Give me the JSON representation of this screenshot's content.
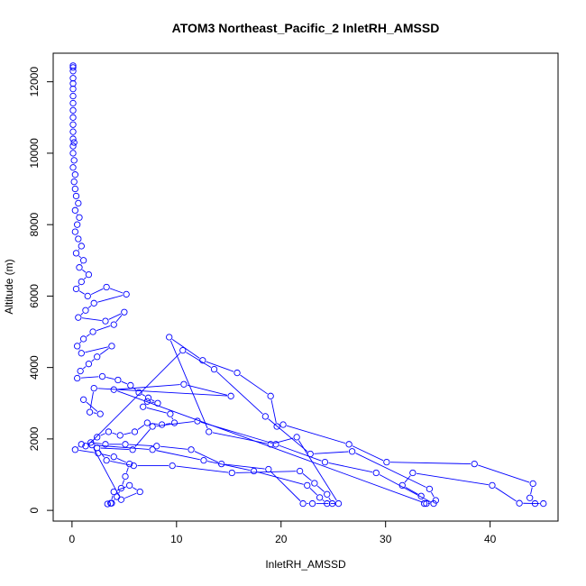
{
  "chart_data": {
    "type": "scatter",
    "title": "ATOM3 Northeast_Pacific_2 InletRH_AMSSD",
    "xlabel": "InletRH_AMSSD",
    "ylabel": "Altitude (m)",
    "xlim": [
      -1.8,
      46.5
    ],
    "ylim": [
      -300,
      12800
    ],
    "xticks": [
      0,
      10,
      20,
      30,
      40
    ],
    "xtick_labels": [
      "0",
      "10",
      "20",
      "30",
      "40"
    ],
    "yticks": [
      0,
      2000,
      4000,
      6000,
      8000,
      10000,
      12000
    ],
    "ytick_labels": [
      "0",
      "2000",
      "4000",
      "6000",
      "8000",
      "10000",
      "12000"
    ],
    "grid": false,
    "legend": "none",
    "series_color": "#0000ff",
    "marker": "open-circle",
    "connected": true,
    "points": [
      [
        0.1,
        12450
      ],
      [
        0.1,
        12400
      ],
      [
        0.1,
        12300
      ],
      [
        0.1,
        12100
      ],
      [
        0.1,
        11950
      ],
      [
        0.1,
        11800
      ],
      [
        0.1,
        11600
      ],
      [
        0.1,
        11400
      ],
      [
        0.1,
        11200
      ],
      [
        0.1,
        11000
      ],
      [
        0.1,
        10800
      ],
      [
        0.1,
        10600
      ],
      [
        0.1,
        10400
      ],
      [
        0.2,
        10300
      ],
      [
        0.1,
        10200
      ],
      [
        0.1,
        10000
      ],
      [
        0.2,
        9800
      ],
      [
        0.1,
        9600
      ],
      [
        0.3,
        9400
      ],
      [
        0.2,
        9200
      ],
      [
        0.3,
        9000
      ],
      [
        0.4,
        8800
      ],
      [
        0.6,
        8600
      ],
      [
        0.3,
        8400
      ],
      [
        0.7,
        8200
      ],
      [
        0.5,
        8000
      ],
      [
        0.3,
        7800
      ],
      [
        0.6,
        7600
      ],
      [
        0.9,
        7400
      ],
      [
        0.4,
        7200
      ],
      [
        1.1,
        7000
      ],
      [
        0.7,
        6800
      ],
      [
        1.6,
        6600
      ],
      [
        0.9,
        6400
      ],
      [
        0.4,
        6200
      ],
      [
        1.5,
        6000
      ],
      [
        3.3,
        6250
      ],
      [
        5.2,
        6050
      ],
      [
        2.1,
        5800
      ],
      [
        1.3,
        5600
      ],
      [
        0.6,
        5400
      ],
      [
        3.2,
        5300
      ],
      [
        5.0,
        5550
      ],
      [
        4.0,
        5200
      ],
      [
        2.0,
        5000
      ],
      [
        1.1,
        4800
      ],
      [
        0.5,
        4600
      ],
      [
        0.9,
        4400
      ],
      [
        3.8,
        4600
      ],
      [
        2.4,
        4300
      ],
      [
        1.6,
        4100
      ],
      [
        0.8,
        3900
      ],
      [
        0.5,
        3700
      ],
      [
        2.9,
        3750
      ],
      [
        4.4,
        3650
      ],
      [
        5.6,
        3500
      ],
      [
        6.4,
        3300
      ],
      [
        7.3,
        3150
      ],
      [
        8.2,
        3000
      ],
      [
        7.2,
        3050
      ],
      [
        6.8,
        2900
      ],
      [
        9.4,
        2700
      ],
      [
        9.8,
        2450
      ],
      [
        8.6,
        2400
      ],
      [
        7.2,
        2450
      ],
      [
        6.0,
        2200
      ],
      [
        4.6,
        2100
      ],
      [
        3.5,
        2200
      ],
      [
        2.4,
        2050
      ],
      [
        1.3,
        1800
      ],
      [
        0.9,
        1850
      ],
      [
        0.3,
        1700
      ],
      [
        2.5,
        1600
      ],
      [
        4.0,
        1500
      ],
      [
        5.5,
        1300
      ],
      [
        5.1,
        950
      ],
      [
        4.7,
        620
      ],
      [
        4.3,
        380
      ],
      [
        3.8,
        200
      ],
      [
        3.4,
        180
      ],
      [
        3.7,
        200
      ],
      [
        4.0,
        520
      ],
      [
        5.5,
        700
      ],
      [
        6.5,
        520
      ],
      [
        4.7,
        300
      ],
      [
        1.9,
        1830
      ],
      [
        7.7,
        1700
      ],
      [
        12.6,
        1400
      ],
      [
        17.4,
        1100
      ],
      [
        22.5,
        700
      ],
      [
        23.7,
        360
      ],
      [
        24.4,
        190
      ],
      [
        25.5,
        190
      ],
      [
        21.5,
        2050
      ],
      [
        19.0,
        1850
      ],
      [
        13.1,
        2200
      ],
      [
        9.3,
        4850
      ],
      [
        12.5,
        4200
      ],
      [
        15.8,
        3850
      ],
      [
        19.0,
        3200
      ],
      [
        19.6,
        2350
      ],
      [
        20.2,
        2400
      ],
      [
        26.5,
        1850
      ],
      [
        30.1,
        1350
      ],
      [
        38.5,
        1300
      ],
      [
        44.1,
        750
      ],
      [
        43.8,
        350
      ],
      [
        44.3,
        190
      ],
      [
        45.1,
        190
      ],
      [
        42.8,
        200
      ],
      [
        40.2,
        700
      ],
      [
        32.6,
        1050
      ],
      [
        31.6,
        700
      ],
      [
        33.4,
        400
      ],
      [
        33.7,
        190
      ],
      [
        34.6,
        190
      ],
      [
        29.1,
        1050
      ],
      [
        24.2,
        1350
      ],
      [
        19.5,
        1850
      ],
      [
        12.0,
        2500
      ],
      [
        7.7,
        2350
      ],
      [
        5.8,
        1700
      ],
      [
        2.4,
        1750
      ],
      [
        3.3,
        1400
      ],
      [
        5.9,
        1250
      ],
      [
        9.6,
        1250
      ],
      [
        15.3,
        1050
      ],
      [
        21.8,
        1100
      ],
      [
        23.2,
        760
      ],
      [
        24.4,
        450
      ],
      [
        24.9,
        190
      ],
      [
        23.0,
        190
      ],
      [
        22.1,
        190
      ],
      [
        18.8,
        1150
      ],
      [
        14.3,
        1300
      ],
      [
        11.4,
        1700
      ],
      [
        8.1,
        1800
      ],
      [
        5.1,
        1850
      ],
      [
        3.2,
        1850
      ],
      [
        1.8,
        1900
      ],
      [
        10.6,
        4480
      ],
      [
        13.6,
        3950
      ],
      [
        18.5,
        2630
      ],
      [
        22.8,
        1580
      ],
      [
        26.8,
        1650
      ],
      [
        34.2,
        600
      ],
      [
        34.8,
        280
      ],
      [
        33.9,
        190
      ],
      [
        4.0,
        3380
      ],
      [
        10.7,
        3530
      ],
      [
        15.2,
        3200
      ],
      [
        2.1,
        3420
      ],
      [
        1.7,
        2750
      ],
      [
        2.7,
        2700
      ],
      [
        1.1,
        3100
      ]
    ]
  }
}
